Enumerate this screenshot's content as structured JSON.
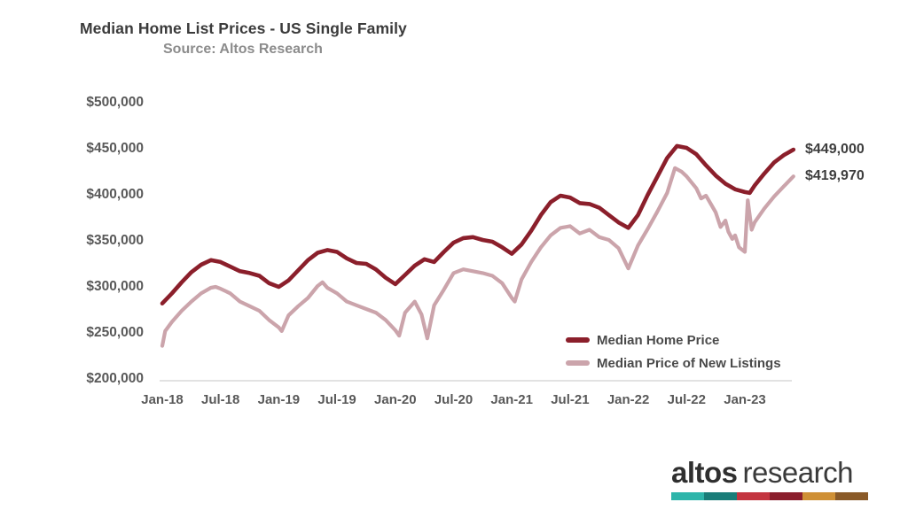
{
  "header": {
    "title": "Median Home List Prices - US Single Family",
    "subtitle": "Source: Altos Research"
  },
  "chart_data": {
    "type": "line",
    "title": "Median Home List Prices - US Single Family",
    "subtitle": "Source: Altos Research",
    "xlabel": "",
    "ylabel": "",
    "ylim": [
      200000,
      500000
    ],
    "x_range_months": [
      0,
      65
    ],
    "grid": false,
    "legend_position": "inside-lower-right",
    "y_ticks": [
      {
        "value": 500000,
        "label": "$500,000"
      },
      {
        "value": 450000,
        "label": "$450,000"
      },
      {
        "value": 400000,
        "label": "$400,000"
      },
      {
        "value": 350000,
        "label": "$350,000"
      },
      {
        "value": 300000,
        "label": "$300,000"
      },
      {
        "value": 250000,
        "label": "$250,000"
      },
      {
        "value": 200000,
        "label": "$200,000"
      }
    ],
    "x_ticks": [
      {
        "month": 0,
        "label": "Jan-18"
      },
      {
        "month": 6,
        "label": "Jul-18"
      },
      {
        "month": 12,
        "label": "Jan-19"
      },
      {
        "month": 18,
        "label": "Jul-19"
      },
      {
        "month": 24,
        "label": "Jan-20"
      },
      {
        "month": 30,
        "label": "Jul-20"
      },
      {
        "month": 36,
        "label": "Jan-21"
      },
      {
        "month": 42,
        "label": "Jul-21"
      },
      {
        "month": 48,
        "label": "Jan-22"
      },
      {
        "month": 54,
        "label": "Jul-22"
      },
      {
        "month": 60,
        "label": "Jan-23"
      }
    ],
    "series": [
      {
        "id": "median-home-price",
        "name": "Median Home Price",
        "color": "#8b1f2b",
        "stroke_width": 4.6,
        "end_label": "$449,000",
        "end_value": 449000,
        "points": [
          [
            0,
            282000
          ],
          [
            1,
            293000
          ],
          [
            2,
            305000
          ],
          [
            3,
            316000
          ],
          [
            4,
            324000
          ],
          [
            5,
            329000
          ],
          [
            6,
            327000
          ],
          [
            7,
            322000
          ],
          [
            8,
            317000
          ],
          [
            9,
            315000
          ],
          [
            10,
            312000
          ],
          [
            11,
            304000
          ],
          [
            12,
            300000
          ],
          [
            13,
            307000
          ],
          [
            14,
            318000
          ],
          [
            15,
            329000
          ],
          [
            16,
            337000
          ],
          [
            17,
            340000
          ],
          [
            18,
            338000
          ],
          [
            19,
            331000
          ],
          [
            20,
            326000
          ],
          [
            21,
            325000
          ],
          [
            22,
            319000
          ],
          [
            23,
            310000
          ],
          [
            24,
            303000
          ],
          [
            25,
            313000
          ],
          [
            26,
            323000
          ],
          [
            27,
            330000
          ],
          [
            28,
            327000
          ],
          [
            29,
            338000
          ],
          [
            30,
            348000
          ],
          [
            31,
            353000
          ],
          [
            32,
            354000
          ],
          [
            33,
            351000
          ],
          [
            34,
            349000
          ],
          [
            35,
            343000
          ],
          [
            36,
            336000
          ],
          [
            37,
            346000
          ],
          [
            38,
            361000
          ],
          [
            39,
            378000
          ],
          [
            40,
            392000
          ],
          [
            41,
            399000
          ],
          [
            42,
            397000
          ],
          [
            43,
            391000
          ],
          [
            44,
            390000
          ],
          [
            45,
            386000
          ],
          [
            46,
            378000
          ],
          [
            47,
            370000
          ],
          [
            48,
            364000
          ],
          [
            49,
            378000
          ],
          [
            50,
            400000
          ],
          [
            51,
            420000
          ],
          [
            52,
            440000
          ],
          [
            53,
            453000
          ],
          [
            54,
            451000
          ],
          [
            55,
            444000
          ],
          [
            56,
            432000
          ],
          [
            57,
            421000
          ],
          [
            58,
            412000
          ],
          [
            59,
            406000
          ],
          [
            60,
            403000
          ],
          [
            60.5,
            402000
          ],
          [
            61,
            410000
          ],
          [
            62,
            423000
          ],
          [
            63,
            435000
          ],
          [
            64,
            443000
          ],
          [
            65,
            449000
          ]
        ]
      },
      {
        "id": "median-price-new-listings",
        "name": "Median Price of New Listings",
        "color": "#cba4ab",
        "stroke_width": 4.2,
        "end_label": "$419,970",
        "end_value": 419970,
        "points": [
          [
            0,
            236000
          ],
          [
            0.3,
            252000
          ],
          [
            1,
            262000
          ],
          [
            2,
            274000
          ],
          [
            3,
            284000
          ],
          [
            4,
            293000
          ],
          [
            5,
            299000
          ],
          [
            5.5,
            300000
          ],
          [
            6,
            298000
          ],
          [
            7,
            293000
          ],
          [
            8,
            284000
          ],
          [
            9,
            279000
          ],
          [
            10,
            274000
          ],
          [
            11,
            264000
          ],
          [
            12,
            256000
          ],
          [
            12.3,
            252000
          ],
          [
            13,
            269000
          ],
          [
            14,
            279000
          ],
          [
            15,
            288000
          ],
          [
            16,
            301000
          ],
          [
            16.5,
            305000
          ],
          [
            17,
            299000
          ],
          [
            18,
            293000
          ],
          [
            19,
            284000
          ],
          [
            20,
            280000
          ],
          [
            21,
            276000
          ],
          [
            22,
            272000
          ],
          [
            23,
            264000
          ],
          [
            24,
            253000
          ],
          [
            24.4,
            247000
          ],
          [
            25,
            272000
          ],
          [
            26,
            284000
          ],
          [
            26.7,
            270000
          ],
          [
            27.3,
            244000
          ],
          [
            28,
            280000
          ],
          [
            29,
            297000
          ],
          [
            30,
            315000
          ],
          [
            31,
            319000
          ],
          [
            32,
            317000
          ],
          [
            33,
            315000
          ],
          [
            34,
            312000
          ],
          [
            35,
            304000
          ],
          [
            36,
            288000
          ],
          [
            36.3,
            284000
          ],
          [
            37,
            308000
          ],
          [
            38,
            327000
          ],
          [
            39,
            343000
          ],
          [
            40,
            356000
          ],
          [
            41,
            364000
          ],
          [
            42,
            366000
          ],
          [
            43,
            358000
          ],
          [
            44,
            362000
          ],
          [
            45,
            354000
          ],
          [
            46,
            351000
          ],
          [
            47,
            342000
          ],
          [
            48,
            320000
          ],
          [
            49,
            345000
          ],
          [
            50,
            363000
          ],
          [
            51,
            382000
          ],
          [
            52,
            402000
          ],
          [
            52.8,
            429000
          ],
          [
            53.5,
            425000
          ],
          [
            54,
            420000
          ],
          [
            55,
            407000
          ],
          [
            55.5,
            396000
          ],
          [
            56,
            399000
          ],
          [
            56.5,
            390000
          ],
          [
            57,
            381000
          ],
          [
            57.5,
            365000
          ],
          [
            58,
            372000
          ],
          [
            58.3,
            360000
          ],
          [
            58.7,
            352000
          ],
          [
            59,
            356000
          ],
          [
            59.4,
            343000
          ],
          [
            60,
            338000
          ],
          [
            60.3,
            394000
          ],
          [
            60.7,
            362000
          ],
          [
            61,
            370000
          ],
          [
            62,
            385000
          ],
          [
            63,
            398000
          ],
          [
            64,
            409000
          ],
          [
            65,
            419970
          ]
        ]
      }
    ]
  },
  "legend": {
    "items": [
      {
        "label": "Median Home Price"
      },
      {
        "label": "Median Price of New Listings"
      }
    ]
  },
  "logo": {
    "word1": "altos",
    "word2": "research",
    "bar_colors": [
      "#2eb5aa",
      "#1a7d79",
      "#c33540",
      "#8b1e2c",
      "#cf9036",
      "#8a5a28"
    ]
  }
}
